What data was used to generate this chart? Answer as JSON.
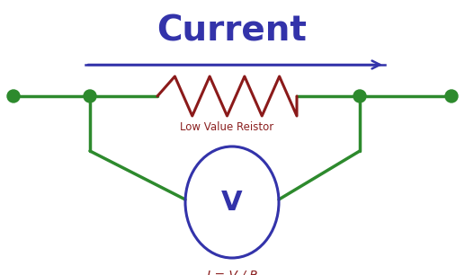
{
  "title": "Current",
  "title_color": "#3333aa",
  "title_fontsize": 28,
  "bg_color": "#ffffff",
  "wire_color": "#2d8a2d",
  "wire_linewidth": 2.5,
  "resistor_color": "#8b1a1a",
  "resistor_linewidth": 2.2,
  "arrow_color": "#3333aa",
  "arrow_lw": 1.8,
  "node_color": "#2d8a2d",
  "voltmeter_color": "#3333aa",
  "voltmeter_linewidth": 2.2,
  "label_resistor": "Low Value Reistor",
  "label_resistor_color": "#8b2020",
  "label_resistor_fontsize": 8.5,
  "label_formula": "I = V / R",
  "label_formula_color": "#8b2020",
  "label_formula_fontsize": 10,
  "voltmeter_label": "V",
  "voltmeter_label_color": "#3333aa",
  "voltmeter_label_fontsize": 22,
  "fig_width": 5.17,
  "fig_height": 3.06,
  "dpi": 100
}
